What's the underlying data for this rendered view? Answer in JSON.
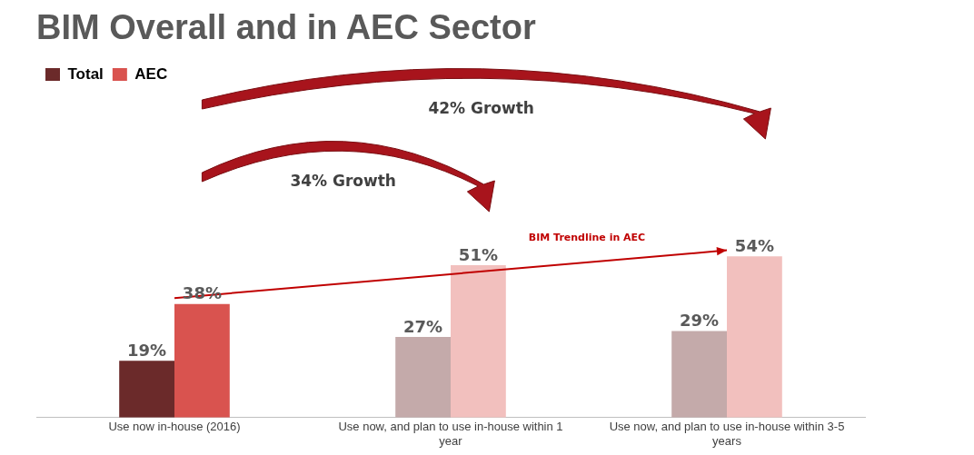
{
  "chart_data": {
    "type": "bar",
    "title": "BIM Overall and in AEC Sector",
    "categories": [
      "Use now in-house (2016)",
      "Use now, and plan to use in-house within 1 year",
      "Use now, and plan to use in-house within 3-5 years"
    ],
    "series": [
      {
        "name": "Total",
        "color": "#6b2a2a",
        "colors": [
          "#6b2a2a",
          "#c4aaaa",
          "#c4aaaa"
        ],
        "values": [
          19,
          27,
          29
        ],
        "value_labels": [
          "19%",
          "27%",
          "29%"
        ]
      },
      {
        "name": "AEC",
        "color": "#d9534f",
        "colors": [
          "#d9534f",
          "#f2c0be",
          "#f2c0be"
        ],
        "values": [
          38,
          51,
          54
        ],
        "value_labels": [
          "38%",
          "51%",
          "54%"
        ]
      },
      {
        "name": "BIM Trendline in AEC",
        "type": "line",
        "color": "#c00000",
        "x": [
          "Use now in-house (2016)",
          "Use now, and plan to use in-house within 3-5 years"
        ],
        "values": [
          40,
          56
        ]
      }
    ],
    "legend": "top left",
    "grid": false,
    "annotations": [
      "34% Growth",
      "42% Growth"
    ]
  }
}
